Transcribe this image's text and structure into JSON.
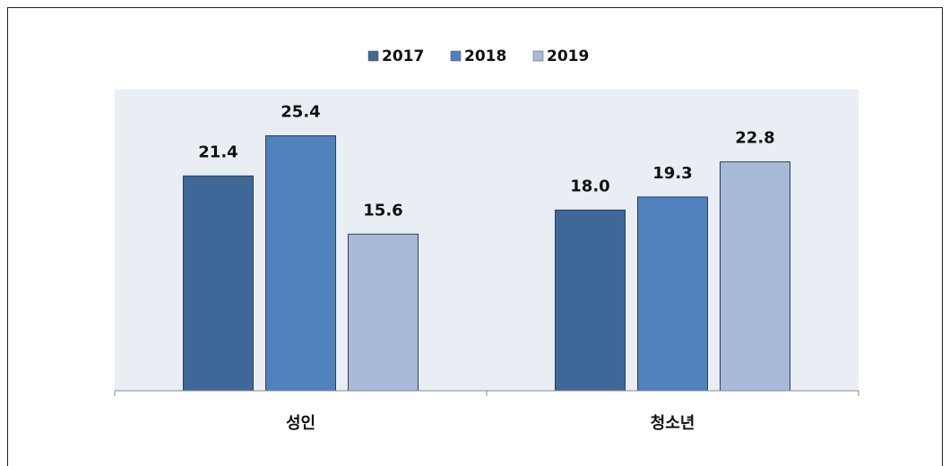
{
  "chart_data": {
    "type": "bar",
    "categories": [
      "성인",
      "청소년"
    ],
    "series": [
      {
        "name": "2017",
        "color": "#3f6797",
        "values": [
          21.4,
          18.0
        ],
        "value_labels": [
          "21.4",
          "18.0"
        ]
      },
      {
        "name": "2018",
        "color": "#4f81bd",
        "values": [
          25.4,
          19.3
        ],
        "value_labels": [
          "25.4",
          "19.3"
        ]
      },
      {
        "name": "2019",
        "color": "#a9b9d8",
        "values": [
          15.6,
          22.8
        ],
        "value_labels": [
          "15.6",
          "22.8"
        ]
      }
    ],
    "ylim": [
      0,
      30
    ]
  }
}
